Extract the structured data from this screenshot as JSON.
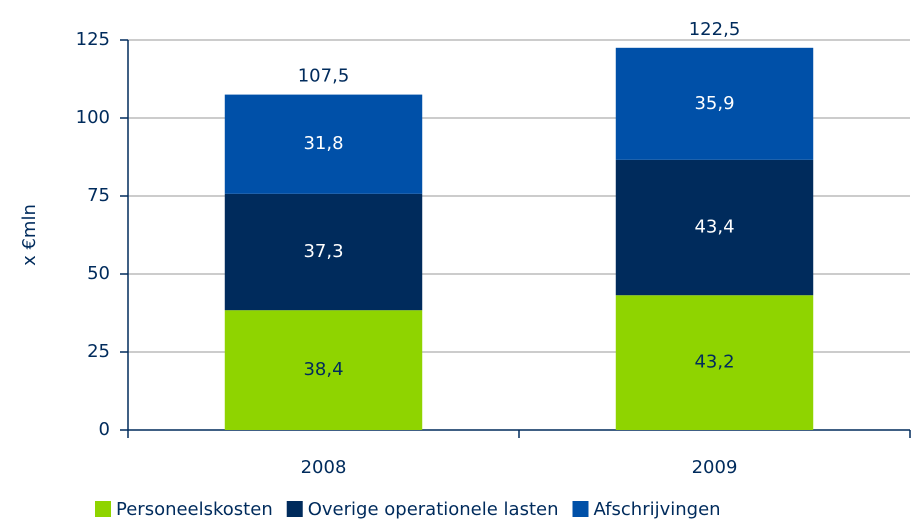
{
  "chart_data": {
    "type": "stacked-bar",
    "y_axis_label": "x €mln",
    "categories": [
      "2008",
      "2009"
    ],
    "series": [
      {
        "name": "Personeelskosten",
        "color": "#8fd400",
        "label_color": "#002b5c",
        "values": [
          38.4,
          43.2
        ],
        "value_labels": [
          "38,4",
          "43,2"
        ]
      },
      {
        "name": "Overige operationele lasten",
        "color": "#002b5c",
        "label_color": "#ffffff",
        "values": [
          37.3,
          43.4
        ],
        "value_labels": [
          "37,3",
          "43,4"
        ]
      },
      {
        "name": "Afschrijvingen",
        "color": "#0050a8",
        "label_color": "#ffffff",
        "values": [
          31.8,
          35.9
        ],
        "value_labels": [
          "31,8",
          "35,9"
        ]
      }
    ],
    "totals": [
      107.5,
      122.5
    ],
    "total_labels": [
      "107,5",
      "122,5"
    ],
    "ylim": [
      0,
      125
    ],
    "yticks": [
      0,
      25,
      50,
      75,
      100,
      125
    ],
    "grid": true
  }
}
